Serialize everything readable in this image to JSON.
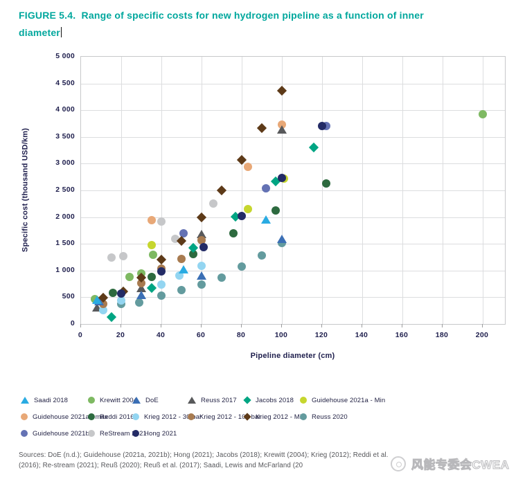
{
  "figure": {
    "label": "FIGURE 5.4.",
    "title_rest": "Range of specific costs for new hydrogen pipeline as a function of inner",
    "title_line2": "diameter",
    "accent_color": "#00A79D"
  },
  "chart_data": {
    "type": "scatter",
    "xlabel": "Pipeline diameter (cm)",
    "ylabel": "Specific cost (thousand USD/km)",
    "xlim": [
      0,
      211
    ],
    "ylim": [
      0,
      5000
    ],
    "x_ticks": [
      0,
      20,
      40,
      60,
      80,
      100,
      120,
      140,
      160,
      180,
      200
    ],
    "y_ticks": [
      0,
      500,
      1000,
      1500,
      2000,
      2500,
      3000,
      3500,
      4000,
      4500,
      5000
    ],
    "grid": true,
    "legend_position": "bottom",
    "series": [
      {
        "name": "Saadi 2018",
        "marker": "triangle",
        "color": "#29ABE2",
        "points": [
          [
            8,
            440
          ],
          [
            51,
            1010
          ],
          [
            92,
            1940
          ]
        ]
      },
      {
        "name": "Krewitt 2004",
        "marker": "circle",
        "color": "#7EB962",
        "points": [
          [
            7,
            470
          ],
          [
            24,
            880
          ],
          [
            30,
            950
          ],
          [
            36,
            1300
          ],
          [
            200,
            3920
          ]
        ]
      },
      {
        "name": "DoE",
        "marker": "triangle",
        "color": "#3B6FB5",
        "points": [
          [
            9,
            420
          ],
          [
            30,
            530
          ],
          [
            60,
            890
          ],
          [
            100,
            1580
          ]
        ]
      },
      {
        "name": "Reuss 2017",
        "marker": "triangle",
        "color": "#58595B",
        "points": [
          [
            8,
            300
          ],
          [
            30,
            660
          ],
          [
            60,
            1670
          ],
          [
            100,
            3630
          ]
        ]
      },
      {
        "name": "Jacobs 2018",
        "marker": "diamond",
        "color": "#00A583",
        "points": [
          [
            15,
            130
          ],
          [
            35,
            670
          ],
          [
            56,
            1420
          ],
          [
            77,
            2010
          ],
          [
            97,
            2670
          ],
          [
            116,
            3300
          ]
        ]
      },
      {
        "name": "Guidehouse 2021a - Min",
        "marker": "circle",
        "color": "#C6D62E",
        "points": [
          [
            35,
            1480
          ],
          [
            83,
            2150
          ],
          [
            101,
            2720
          ]
        ]
      },
      {
        "name": "Guidehouse 2021a - max",
        "marker": "circle",
        "color": "#E8A877",
        "points": [
          [
            35,
            1940
          ],
          [
            83,
            2940
          ],
          [
            100,
            3730
          ]
        ]
      },
      {
        "name": "Reddi 2016",
        "marker": "circle",
        "color": "#2D6A3F",
        "points": [
          [
            16,
            580
          ],
          [
            35,
            880
          ],
          [
            56,
            1310
          ],
          [
            76,
            1700
          ],
          [
            97,
            2120
          ],
          [
            122,
            2630
          ]
        ]
      },
      {
        "name": "Krieg 2012 - 30 bar",
        "marker": "circle",
        "color": "#93D5F1",
        "points": [
          [
            11,
            260
          ],
          [
            20,
            440
          ],
          [
            40,
            740
          ],
          [
            49,
            910
          ],
          [
            60,
            1090
          ]
        ]
      },
      {
        "name": "Krieg 2012 - 100 bar",
        "marker": "circle",
        "color": "#A87B50",
        "points": [
          [
            11,
            380
          ],
          [
            30,
            760
          ],
          [
            40,
            1030
          ],
          [
            50,
            1220
          ],
          [
            60,
            1570
          ]
        ]
      },
      {
        "name": "Krieg 2012 - Mid",
        "marker": "diamond",
        "color": "#5D3A18",
        "points": [
          [
            11,
            490
          ],
          [
            21,
            610
          ],
          [
            30,
            870
          ],
          [
            40,
            1200
          ],
          [
            50,
            1550
          ],
          [
            60,
            2000
          ],
          [
            70,
            2500
          ],
          [
            80,
            3070
          ],
          [
            90,
            3670
          ],
          [
            100,
            4360
          ]
        ]
      },
      {
        "name": "Reuss 2020",
        "marker": "circle",
        "color": "#639B9E",
        "points": [
          [
            20,
            370
          ],
          [
            29,
            400
          ],
          [
            40,
            530
          ],
          [
            50,
            630
          ],
          [
            60,
            740
          ],
          [
            70,
            870
          ],
          [
            80,
            1080
          ],
          [
            90,
            1280
          ],
          [
            100,
            1520
          ]
        ]
      },
      {
        "name": "Guidehouse 2021b",
        "marker": "circle",
        "color": "#6472B4",
        "points": [
          [
            51,
            1700
          ],
          [
            92,
            2540
          ],
          [
            122,
            3700
          ]
        ]
      },
      {
        "name": "ReStream 2021",
        "marker": "circle",
        "color": "#C6C7C9",
        "points": [
          [
            15,
            1250
          ],
          [
            21,
            1270
          ],
          [
            40,
            1920
          ],
          [
            47,
            1590
          ],
          [
            66,
            2250
          ]
        ]
      },
      {
        "name": "Hong 2021",
        "marker": "circle",
        "color": "#232B66",
        "points": [
          [
            20,
            570
          ],
          [
            40,
            980
          ],
          [
            61,
            1440
          ],
          [
            80,
            2020
          ],
          [
            100,
            2730
          ],
          [
            120,
            3700
          ]
        ]
      }
    ]
  },
  "sources": {
    "line1": "Sources: DoE (n.d.); Guidehouse (2021a, 2021b); Hong (2021); Jacobs (2018); Krewitt (2004); Krieg (2012); Reddi et al.",
    "line2": "(2016); Re-stream (2021); Reuß (2020); Reuß et al. (2017); Saadi, Lewis and McFarland (20"
  },
  "watermark": {
    "text": "风能专委会CWEA"
  }
}
